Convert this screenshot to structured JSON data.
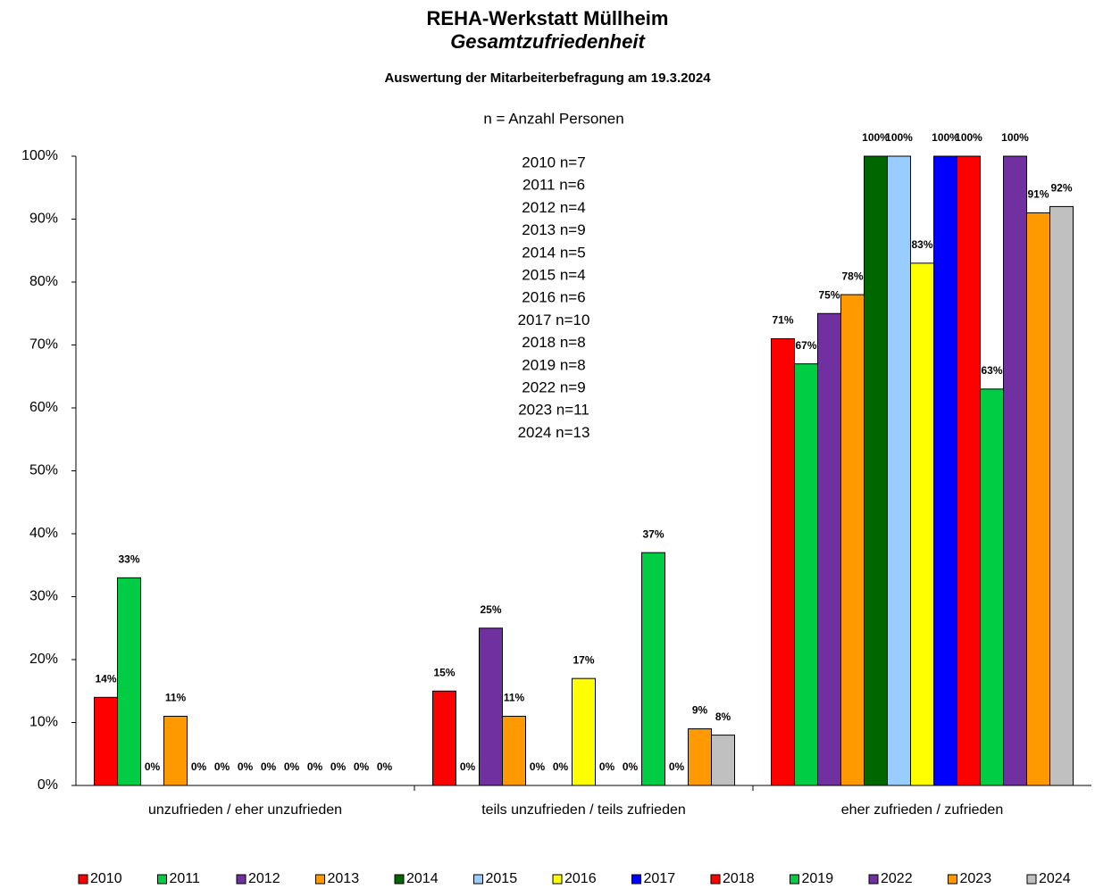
{
  "chart_data": {
    "type": "bar",
    "title": "REHA-Werkstatt Müllheim",
    "subtitle": "Gesamtzufriedenheit",
    "subtitle2": "Auswertung der Mitarbeiterbefragung am 19.3.2024",
    "annotations": [
      "n = Anzahl Personen",
      "2010 n=7",
      "2011 n=6",
      "2012 n=4",
      "2013 n=9",
      "2014 n=5",
      "2015 n=4",
      "2016 n=6",
      "2017 n=10",
      "2018 n=8",
      "2019 n=8",
      "2022 n=9",
      "2023 n=11",
      "2024 n=13"
    ],
    "categories": [
      "unzufrieden / eher unzufrieden",
      "teils unzufrieden / teils zufrieden",
      "eher zufrieden / zufrieden"
    ],
    "series": [
      {
        "name": "2010",
        "color": "#ff0000",
        "values": [
          14,
          15,
          71
        ],
        "value_labels": [
          "14%",
          "15%",
          "71%"
        ]
      },
      {
        "name": "2011",
        "color": "#00cc44",
        "values": [
          33,
          0,
          67
        ],
        "value_labels": [
          "33%",
          "0%",
          "67%"
        ]
      },
      {
        "name": "2012",
        "color": "#7030a0",
        "values": [
          0,
          25,
          75
        ],
        "value_labels": [
          "0%",
          "25%",
          "75%"
        ]
      },
      {
        "name": "2013",
        "color": "#ff9900",
        "values": [
          11,
          11,
          78
        ],
        "value_labels": [
          "11%",
          "11%",
          "78%"
        ]
      },
      {
        "name": "2014",
        "color": "#006600",
        "values": [
          0,
          0,
          100
        ],
        "value_labels": [
          "0%",
          "0%",
          "100%"
        ]
      },
      {
        "name": "2015",
        "color": "#99ccff",
        "values": [
          0,
          0,
          100
        ],
        "value_labels": [
          "0%",
          "0%",
          "100%"
        ]
      },
      {
        "name": "2016",
        "color": "#ffff00",
        "values": [
          0,
          17,
          83
        ],
        "value_labels": [
          "0%",
          "17%",
          "83%"
        ]
      },
      {
        "name": "2017",
        "color": "#0000ff",
        "values": [
          0,
          0,
          100
        ],
        "value_labels": [
          "0%",
          "0%",
          "100%"
        ]
      },
      {
        "name": "2018",
        "color": "#ff0000",
        "values": [
          0,
          0,
          100
        ],
        "value_labels": [
          "0%",
          "0%",
          "100%"
        ]
      },
      {
        "name": "2019",
        "color": "#00cc44",
        "values": [
          0,
          37,
          63
        ],
        "value_labels": [
          "0%",
          "37%",
          "63%"
        ]
      },
      {
        "name": "2022",
        "color": "#7030a0",
        "values": [
          0,
          0,
          100
        ],
        "value_labels": [
          "0%",
          "0%",
          "100%"
        ]
      },
      {
        "name": "2023",
        "color": "#ff9900",
        "values": [
          0,
          9,
          91
        ],
        "value_labels": [
          "0%",
          "9%",
          "91%"
        ]
      },
      {
        "name": "2024",
        "color": "#c0c0c0",
        "values": [
          0,
          8,
          92
        ],
        "value_labels": [
          "0%",
          "8%",
          "92%"
        ]
      }
    ],
    "ylim": [
      0,
      100
    ],
    "yticks": [
      {
        "value": 0,
        "label": "0%"
      },
      {
        "value": 10,
        "label": "10%"
      },
      {
        "value": 20,
        "label": "20%"
      },
      {
        "value": 30,
        "label": "30%"
      },
      {
        "value": 40,
        "label": "40%"
      },
      {
        "value": 50,
        "label": "50%"
      },
      {
        "value": 60,
        "label": "60%"
      },
      {
        "value": 70,
        "label": "70%"
      },
      {
        "value": 80,
        "label": "80%"
      },
      {
        "value": 90,
        "label": "90%"
      },
      {
        "value": 100,
        "label": "100%"
      }
    ],
    "grid": false,
    "legend": "bottom"
  }
}
